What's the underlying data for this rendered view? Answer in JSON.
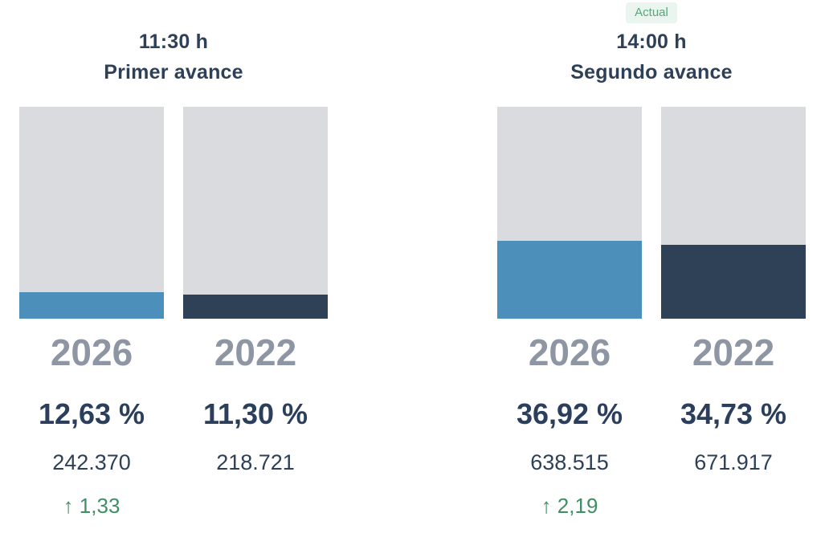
{
  "colors": {
    "bar_background": "#d9dbde",
    "bar_fill_2026": "#4c8fba",
    "bar_fill_2022": "#2e4157",
    "heading_text": "#2e4057",
    "year_label_text": "#8e96a3",
    "percent_text": "#2b3e5c",
    "count_text": "#2e4057",
    "diff_green": "#3e8f64",
    "badge_background": "#e9f5ee",
    "badge_text": "#5aa57b"
  },
  "panels": [
    {
      "time": "11:30 h",
      "subtitle": "Primer avance",
      "columns": [
        {
          "year": "2026",
          "percent_label": "12,63 %",
          "count": "242.370",
          "diff": "↑ 1,33"
        },
        {
          "year": "2022",
          "percent_label": "11,30 %",
          "count": "218.721"
        }
      ]
    },
    {
      "time": "14:00 h",
      "subtitle": "Segundo avance",
      "badge": "Actual",
      "columns": [
        {
          "year": "2026",
          "percent_label": "36,92 %",
          "count": "638.515",
          "diff": "↑ 2,19"
        },
        {
          "year": "2022",
          "percent_label": "34,73 %",
          "count": "671.917"
        }
      ]
    }
  ],
  "chart_data": [
    {
      "type": "bar",
      "title": "11:30 h Primer avance",
      "categories": [
        "2026",
        "2022"
      ],
      "values": [
        12.63,
        11.3
      ],
      "value_labels": [
        "12,63 %",
        "11,30 %"
      ],
      "counts": [
        242370,
        218721
      ],
      "count_labels": [
        "242.370",
        "218.721"
      ],
      "difference_points": 1.33,
      "difference_label": "↑ 1,33",
      "ylim": [
        0,
        100
      ],
      "grid": false,
      "legend_position": "none"
    },
    {
      "type": "bar",
      "title": "14:00 h Segundo avance",
      "badge": "Actual",
      "categories": [
        "2026",
        "2022"
      ],
      "values": [
        36.92,
        34.73
      ],
      "value_labels": [
        "36,92 %",
        "34,73 %"
      ],
      "counts": [
        638515,
        671917
      ],
      "count_labels": [
        "638.515",
        "671.917"
      ],
      "difference_points": 2.19,
      "difference_label": "↑ 2,19",
      "ylim": [
        0,
        100
      ],
      "grid": false,
      "legend_position": "none"
    }
  ]
}
